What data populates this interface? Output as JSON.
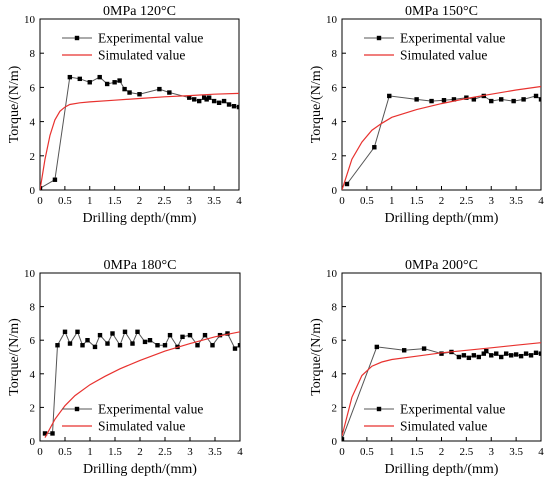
{
  "chart_data": [
    {
      "type": "line",
      "title": "0MPa 120°C",
      "xlabel": "Drilling depth/(mm)",
      "ylabel": "Torque/(N/m)",
      "xlim": [
        0,
        4
      ],
      "ylim": [
        0,
        10
      ],
      "xticks": [
        "0",
        "0.5",
        "1",
        "1.5",
        "2",
        "2.5",
        "3",
        "3.5",
        "4"
      ],
      "yticks": [
        "0",
        "2",
        "4",
        "6",
        "8",
        "10"
      ],
      "legend_position": "top-left",
      "grid": false,
      "series": [
        {
          "name": "Experimental value",
          "color": "#555555",
          "marker": "square",
          "x": [
            0,
            0.3,
            0.6,
            0.8,
            1.0,
            1.2,
            1.35,
            1.5,
            1.6,
            1.7,
            1.8,
            2.0,
            2.4,
            2.6,
            3.0,
            3.1,
            3.2,
            3.3,
            3.35,
            3.4,
            3.5,
            3.6,
            3.7,
            3.8,
            3.9,
            4.0
          ],
          "y": [
            0.1,
            0.6,
            6.6,
            6.5,
            6.3,
            6.6,
            6.2,
            6.3,
            6.4,
            5.9,
            5.7,
            5.6,
            5.9,
            5.7,
            5.4,
            5.3,
            5.2,
            5.4,
            5.3,
            5.4,
            5.2,
            5.1,
            5.2,
            5.0,
            4.9,
            4.85
          ]
        },
        {
          "name": "Simulated value",
          "color": "#e8322f",
          "marker": "none",
          "x": [
            0,
            0.1,
            0.2,
            0.3,
            0.4,
            0.5,
            0.6,
            0.8,
            1.0,
            1.5,
            2.0,
            2.5,
            3.0,
            3.5,
            4.0
          ],
          "y": [
            0,
            1.8,
            3.2,
            4.1,
            4.6,
            4.85,
            5.0,
            5.1,
            5.15,
            5.25,
            5.35,
            5.45,
            5.52,
            5.6,
            5.65
          ]
        }
      ]
    },
    {
      "type": "line",
      "title": "0MPa 150°C",
      "xlabel": "Drilling depth/(mm)",
      "ylabel": "Torque/(N/m)",
      "xlim": [
        0,
        4
      ],
      "ylim": [
        0,
        10
      ],
      "xticks": [
        "0",
        "0.5",
        "1",
        "1.5",
        "2",
        "2.5",
        "3",
        "3.5",
        "4"
      ],
      "yticks": [
        "0",
        "2",
        "4",
        "6",
        "8",
        "10"
      ],
      "legend_position": "top-left",
      "grid": false,
      "series": [
        {
          "name": "Experimental value",
          "color": "#555555",
          "marker": "square",
          "x": [
            0.1,
            0.65,
            0.95,
            1.5,
            1.8,
            2.05,
            2.25,
            2.5,
            2.65,
            2.85,
            3.0,
            3.2,
            3.45,
            3.65,
            3.9,
            4.0
          ],
          "y": [
            0.35,
            2.5,
            5.5,
            5.3,
            5.2,
            5.25,
            5.3,
            5.4,
            5.3,
            5.5,
            5.2,
            5.3,
            5.2,
            5.3,
            5.5,
            5.3
          ]
        },
        {
          "name": "Simulated value",
          "color": "#e8322f",
          "marker": "none",
          "x": [
            0,
            0.2,
            0.4,
            0.6,
            0.8,
            1.0,
            1.5,
            2.0,
            2.5,
            3.0,
            3.5,
            4.0
          ],
          "y": [
            0,
            1.8,
            2.8,
            3.5,
            3.9,
            4.25,
            4.7,
            5.05,
            5.35,
            5.6,
            5.85,
            6.05
          ]
        }
      ]
    },
    {
      "type": "line",
      "title": "0MPa 180°C",
      "xlabel": "Drilling depth/(mm)",
      "ylabel": "Torque/(N/m)",
      "xlim": [
        0,
        4
      ],
      "ylim": [
        0,
        10
      ],
      "xticks": [
        "0",
        "0.5",
        "1",
        "1.5",
        "2",
        "2.5",
        "3",
        "3.5",
        "4"
      ],
      "yticks": [
        "0",
        "2",
        "4",
        "6",
        "8",
        "10"
      ],
      "legend_position": "bottom-left",
      "grid": false,
      "series": [
        {
          "name": "Experimental value",
          "color": "#555555",
          "marker": "square",
          "x": [
            0.1,
            0.25,
            0.35,
            0.5,
            0.6,
            0.75,
            0.85,
            0.95,
            1.1,
            1.2,
            1.35,
            1.45,
            1.6,
            1.7,
            1.85,
            1.95,
            2.1,
            2.2,
            2.35,
            2.5,
            2.6,
            2.75,
            2.85,
            3.0,
            3.15,
            3.3,
            3.45,
            3.6,
            3.75,
            3.9,
            4.0
          ],
          "y": [
            0.45,
            0.45,
            5.7,
            6.5,
            5.8,
            6.5,
            5.7,
            6.0,
            5.6,
            6.3,
            5.8,
            6.4,
            5.7,
            6.5,
            5.8,
            6.5,
            5.9,
            6.0,
            5.7,
            5.7,
            6.3,
            5.6,
            6.2,
            6.3,
            5.7,
            6.3,
            5.7,
            6.3,
            6.4,
            5.5,
            5.7
          ]
        },
        {
          "name": "Simulated value",
          "color": "#e8322f",
          "marker": "none",
          "x": [
            0.1,
            0.3,
            0.5,
            0.7,
            1.0,
            1.3,
            1.6,
            2.0,
            2.5,
            3.0,
            3.5,
            4.0
          ],
          "y": [
            0.2,
            1.3,
            2.1,
            2.7,
            3.35,
            3.85,
            4.3,
            4.8,
            5.35,
            5.8,
            6.2,
            6.5
          ]
        }
      ]
    },
    {
      "type": "line",
      "title": "0MPa 200°C",
      "xlabel": "Drilling depth/(mm)",
      "ylabel": "Torque/(N/m)",
      "xlim": [
        0,
        4
      ],
      "ylim": [
        0,
        10
      ],
      "xticks": [
        "0",
        "0.5",
        "1",
        "1.5",
        "2",
        "2.5",
        "3",
        "3.5",
        "4"
      ],
      "yticks": [
        "0",
        "2",
        "4",
        "6",
        "8",
        "10"
      ],
      "legend_position": "bottom-left",
      "grid": false,
      "series": [
        {
          "name": "Experimental value",
          "color": "#555555",
          "marker": "square",
          "x": [
            0,
            0.7,
            1.25,
            1.65,
            2.0,
            2.2,
            2.35,
            2.45,
            2.55,
            2.65,
            2.75,
            2.85,
            2.9,
            3.0,
            3.1,
            3.2,
            3.3,
            3.4,
            3.5,
            3.6,
            3.7,
            3.8,
            3.9,
            4.0
          ],
          "y": [
            0.1,
            5.6,
            5.4,
            5.5,
            5.2,
            5.3,
            5.0,
            5.1,
            4.95,
            5.1,
            5.0,
            5.2,
            5.35,
            5.1,
            5.2,
            5.0,
            5.2,
            5.1,
            5.15,
            5.05,
            5.2,
            5.1,
            5.25,
            5.2
          ]
        },
        {
          "name": "Simulated value",
          "color": "#e8322f",
          "marker": "none",
          "x": [
            0,
            0.2,
            0.4,
            0.6,
            0.8,
            1.0,
            1.5,
            2.0,
            2.5,
            3.0,
            3.5,
            4.0
          ],
          "y": [
            0.3,
            2.6,
            3.9,
            4.45,
            4.7,
            4.85,
            5.05,
            5.25,
            5.4,
            5.55,
            5.7,
            5.85
          ]
        }
      ]
    }
  ]
}
